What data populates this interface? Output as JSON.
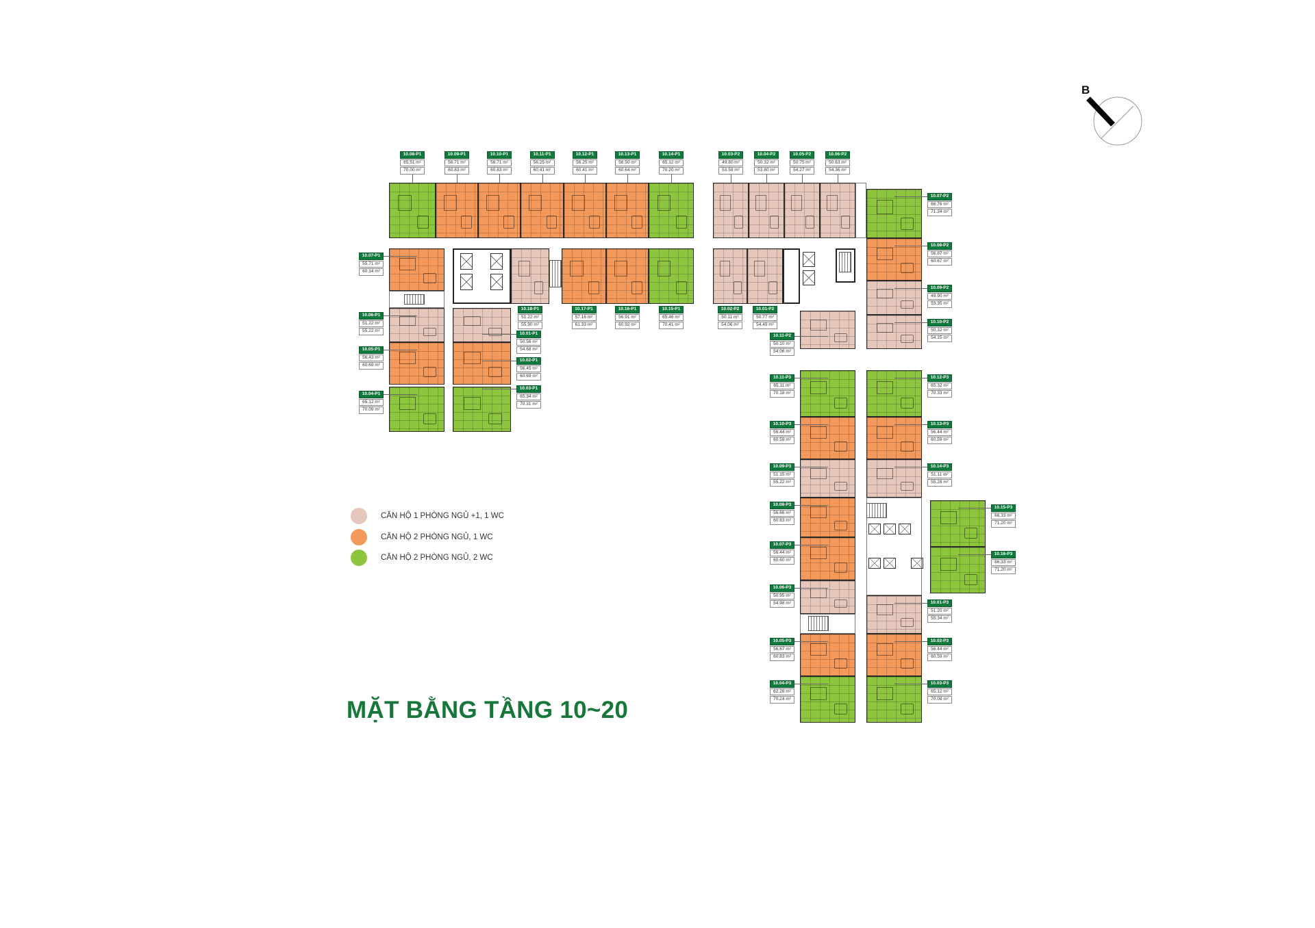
{
  "title": "MẶT BẰNG TẦNG 10~20",
  "compass": {
    "label": "B",
    "icon": "north-arrow-compass"
  },
  "area_unit": "m²",
  "colors": {
    "type_1br": "#e6c7bb",
    "type_2br_1wc": "#f4995c",
    "type_2br_2wc": "#8dc53e",
    "label_green": "#0f7a3c",
    "title_green": "#17773a"
  },
  "legend": [
    {
      "type": "type_1br",
      "label": "CĂN HỘ 1 PHÒNG NGỦ +1, 1 WC"
    },
    {
      "type": "type_2br_1wc",
      "label": "CĂN HỘ 2 PHÒNG NGỦ, 1 WC"
    },
    {
      "type": "type_2br_2wc",
      "label": "CĂN HỘ 2 PHÒNG NGỦ, 2 WC"
    }
  ],
  "units": [
    {
      "id": "10.08-P1",
      "a1": "65.51 m²",
      "a2": "70.00 m²",
      "type": "type_2br_2wc"
    },
    {
      "id": "10.09-P1",
      "a1": "56.71 m²",
      "a2": "60.83 m²",
      "type": "type_2br_1wc"
    },
    {
      "id": "10.10-P1",
      "a1": "56.71 m²",
      "a2": "60.83 m²",
      "type": "type_2br_1wc"
    },
    {
      "id": "10.11-P1",
      "a1": "56.25 m²",
      "a2": "60.41 m²",
      "type": "type_2br_1wc"
    },
    {
      "id": "10.12-P1",
      "a1": "56.25 m²",
      "a2": "60.41 m²",
      "type": "type_2br_1wc"
    },
    {
      "id": "10.13-P1",
      "a1": "56.50 m²",
      "a2": "60.64 m²",
      "type": "type_2br_1wc"
    },
    {
      "id": "10.14-P1",
      "a1": "65.12 m²",
      "a2": "70.20 m²",
      "type": "type_2br_2wc"
    },
    {
      "id": "10.07-P1",
      "a1": "55.71 m²",
      "a2": "60.14 m²",
      "type": "type_2br_1wc"
    },
    {
      "id": "10.18-P1",
      "a1": "51.22 m²",
      "a2": "55.90 m²",
      "type": "type_1br"
    },
    {
      "id": "10.17-P1",
      "a1": "57.16 m²",
      "a2": "61.33 m²",
      "type": "type_2br_1wc"
    },
    {
      "id": "10.16-P1",
      "a1": "56.91 m²",
      "a2": "60.92 m²",
      "type": "type_2br_1wc"
    },
    {
      "id": "10.15-P1",
      "a1": "65.46 m²",
      "a2": "70.41 m²",
      "type": "type_2br_2wc"
    },
    {
      "id": "10.06-P1",
      "a1": "51.22 m²",
      "a2": "55.22 m²",
      "type": "type_1br"
    },
    {
      "id": "10.05-P1",
      "a1": "56.43 m²",
      "a2": "60.69 m²",
      "type": "type_2br_1wc"
    },
    {
      "id": "10.04-P1",
      "a1": "65.12 m²",
      "a2": "70.09 m²",
      "type": "type_2br_2wc"
    },
    {
      "id": "10.01-P1",
      "a1": "50.56 m²",
      "a2": "54.68 m²",
      "type": "type_1br"
    },
    {
      "id": "10.02-P1",
      "a1": "56.45 m²",
      "a2": "60.69 m²",
      "type": "type_2br_1wc"
    },
    {
      "id": "10.03-P1",
      "a1": "65.34 m²",
      "a2": "70.31 m²",
      "type": "type_2br_2wc"
    },
    {
      "id": "10.03-P2",
      "a1": "49.80 m²",
      "a2": "53.59 m²",
      "type": "type_1br"
    },
    {
      "id": "10.04-P2",
      "a1": "50.32 m²",
      "a2": "53.80 m²",
      "type": "type_1br"
    },
    {
      "id": "10.05-P2",
      "a1": "50.75 m²",
      "a2": "54.27 m²",
      "type": "type_1br"
    },
    {
      "id": "10.06-P2",
      "a1": "50.63 m²",
      "a2": "54.36 m²",
      "type": "type_1br"
    },
    {
      "id": "10.02-P2",
      "a1": "50.11 m²",
      "a2": "54.06 m²",
      "type": "type_1br"
    },
    {
      "id": "10.01-P2",
      "a1": "50.77 m²",
      "a2": "54.49 m²",
      "type": "type_1br"
    },
    {
      "id": "10.11-P2",
      "a1": "50.10 m²",
      "a2": "54.06 m²",
      "type": "type_1br"
    },
    {
      "id": "10.07-P2",
      "a1": "66.76 m²",
      "a2": "71.34 m²",
      "type": "type_2br_2wc"
    },
    {
      "id": "10.08-P2",
      "a1": "56.87 m²",
      "a2": "60.67 m²",
      "type": "type_2br_1wc"
    },
    {
      "id": "10.09-P2",
      "a1": "49.90 m²",
      "a2": "53.35 m²",
      "type": "type_1br"
    },
    {
      "id": "10.10-P2",
      "a1": "50.32 m²",
      "a2": "54.15 m²",
      "type": "type_1br"
    },
    {
      "id": "10.11-P3",
      "a1": "65.11 m²",
      "a2": "70.18 m²",
      "type": "type_2br_2wc"
    },
    {
      "id": "10.10-P3",
      "a1": "56.44 m²",
      "a2": "60.59 m²",
      "type": "type_2br_1wc"
    },
    {
      "id": "10.09-P3",
      "a1": "51.15 m²",
      "a2": "55.22 m²",
      "type": "type_1br"
    },
    {
      "id": "10.08-P3",
      "a1": "56.66 m²",
      "a2": "60.83 m²",
      "type": "type_2br_1wc"
    },
    {
      "id": "10.07-P3",
      "a1": "56.44 m²",
      "a2": "60.60 m²",
      "type": "type_2br_1wc"
    },
    {
      "id": "10.06-P3",
      "a1": "50.95 m²",
      "a2": "54.98 m²",
      "type": "type_1br"
    },
    {
      "id": "10.05-P3",
      "a1": "56.67 m²",
      "a2": "60.83 m²",
      "type": "type_2br_1wc"
    },
    {
      "id": "10.04-P3",
      "a1": "62.28 m²",
      "a2": "70.24 m²",
      "type": "type_2br_2wc"
    },
    {
      "id": "10.12-P3",
      "a1": "65.32 m²",
      "a2": "70.33 m²",
      "type": "type_2br_2wc"
    },
    {
      "id": "10.13-P3",
      "a1": "56.44 m²",
      "a2": "60.59 m²",
      "type": "type_2br_1wc"
    },
    {
      "id": "10.14-P3",
      "a1": "51.11 m²",
      "a2": "55.28 m²",
      "type": "type_1br"
    },
    {
      "id": "10.01-P3",
      "a1": "51.20 m²",
      "a2": "55.34 m²",
      "type": "type_1br"
    },
    {
      "id": "10.02-P3",
      "a1": "56.44 m²",
      "a2": "60.59 m²",
      "type": "type_2br_1wc"
    },
    {
      "id": "10.03-P3",
      "a1": "65.12 m²",
      "a2": "70.08 m²",
      "type": "type_2br_2wc"
    },
    {
      "id": "10.15-P3",
      "a1": "66.33 m²",
      "a2": "71.20 m²",
      "type": "type_2br_2wc"
    },
    {
      "id": "10.16-P3",
      "a1": "66.33 m²",
      "a2": "71.20 m²",
      "type": "type_2br_2wc"
    }
  ]
}
